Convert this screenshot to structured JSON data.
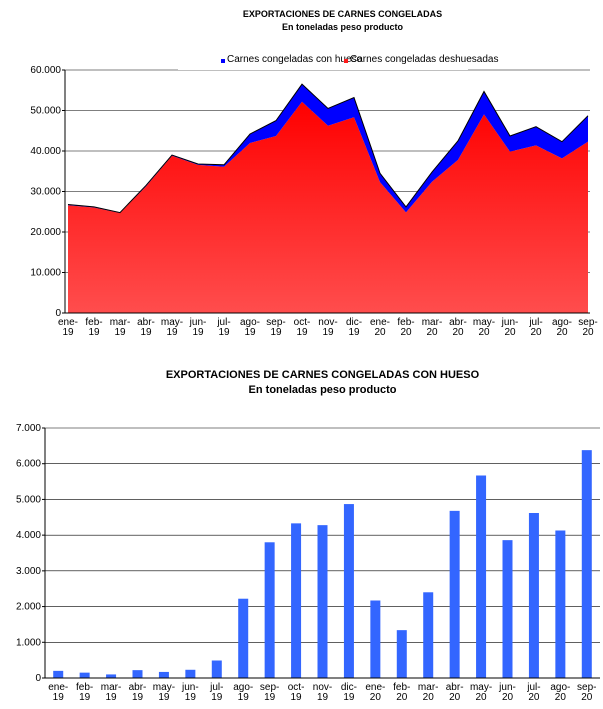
{
  "chart_data": [
    {
      "type": "area",
      "title": "EXPORTACIONES DE CARNES CONGELADAS",
      "subtitle": "En toneladas peso producto",
      "categories": [
        "ene-19",
        "feb-19",
        "mar-19",
        "abr-19",
        "may-19",
        "jun-19",
        "jul-19",
        "ago-19",
        "sep-19",
        "oct-19",
        "nov-19",
        "dic-19",
        "ene-20",
        "feb-20",
        "mar-20",
        "abr-20",
        "may-20",
        "jun-20",
        "jul-20",
        "ago-20",
        "sep-20"
      ],
      "stacked": true,
      "series": [
        {
          "name": "Carnes congeladas deshuesadas",
          "color": "#ff1a1a",
          "values": [
            26600,
            26050,
            24700,
            31280,
            38830,
            36570,
            36110,
            41980,
            43700,
            52170,
            46220,
            48330,
            32330,
            24860,
            32400,
            37820,
            49030,
            39840,
            41380,
            38170,
            42320
          ]
        },
        {
          "name": "Carnes congeladas con hueso",
          "color": "#0000ff",
          "values": [
            200,
            150,
            100,
            220,
            170,
            230,
            490,
            2220,
            3800,
            4330,
            4280,
            4870,
            2170,
            1340,
            2400,
            4680,
            5670,
            3860,
            4620,
            4130,
            6380
          ]
        }
      ],
      "ylim": [
        0,
        60000
      ],
      "yticks": [
        0,
        {
          "value": 10000,
          "label": "10.000"
        },
        {
          "value": 20000,
          "label": "20.000"
        },
        {
          "value": 30000,
          "label": "30.000"
        },
        {
          "value": 40000,
          "label": "40.000"
        },
        {
          "value": 50000,
          "label": "50.000"
        },
        {
          "value": 60000,
          "label": "60.000"
        }
      ],
      "grid": true,
      "legend": "top"
    },
    {
      "type": "bar",
      "title": "EXPORTACIONES DE CARNES CONGELADAS CON HUESO",
      "subtitle": "En toneladas peso producto",
      "categories": [
        "ene-19",
        "feb-19",
        "mar-19",
        "abr-19",
        "may-19",
        "jun-19",
        "jul-19",
        "ago-19",
        "sep-19",
        "oct-19",
        "nov-19",
        "dic-19",
        "ene-20",
        "feb-20",
        "mar-20",
        "abr-20",
        "may-20",
        "jun-20",
        "jul-20",
        "ago-20",
        "sep-20"
      ],
      "values": [
        200,
        150,
        100,
        220,
        170,
        230,
        490,
        2220,
        3800,
        4330,
        4280,
        4870,
        2170,
        1340,
        2400,
        4680,
        5670,
        3860,
        4620,
        4130,
        6380
      ],
      "color": "#3366ff",
      "ylim": [
        0,
        7000
      ],
      "yticks": [
        0,
        {
          "value": 1000,
          "label": "1.000"
        },
        {
          "value": 2000,
          "label": "2.000"
        },
        {
          "value": 3000,
          "label": "3.000"
        },
        {
          "value": 4000,
          "label": "4.000"
        },
        {
          "value": 5000,
          "label": "5.000"
        },
        {
          "value": 6000,
          "label": "6.000"
        },
        {
          "value": 7000,
          "label": "7.000"
        }
      ],
      "grid": true
    }
  ]
}
